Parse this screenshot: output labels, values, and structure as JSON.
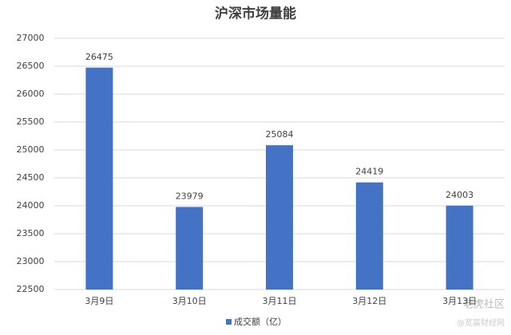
{
  "chart_data": {
    "type": "bar",
    "title": "沪深市场量能",
    "categories": [
      "3月9日",
      "3月10日",
      "3月11日",
      "3月12日",
      "3月13日"
    ],
    "series": [
      {
        "name": "成交额（亿）",
        "color": "#4472c4",
        "values": [
          26475,
          23979,
          25084,
          24419,
          24003
        ]
      }
    ],
    "ylim": [
      22500,
      27000
    ],
    "yticks": [
      22500,
      23000,
      23500,
      24000,
      24500,
      25000,
      25500,
      26000,
      26500,
      27000
    ],
    "grid": true,
    "legend": "bottom",
    "data_labels": true,
    "watermarks": [
      "老虎社区",
      "@宽富财经网"
    ]
  }
}
